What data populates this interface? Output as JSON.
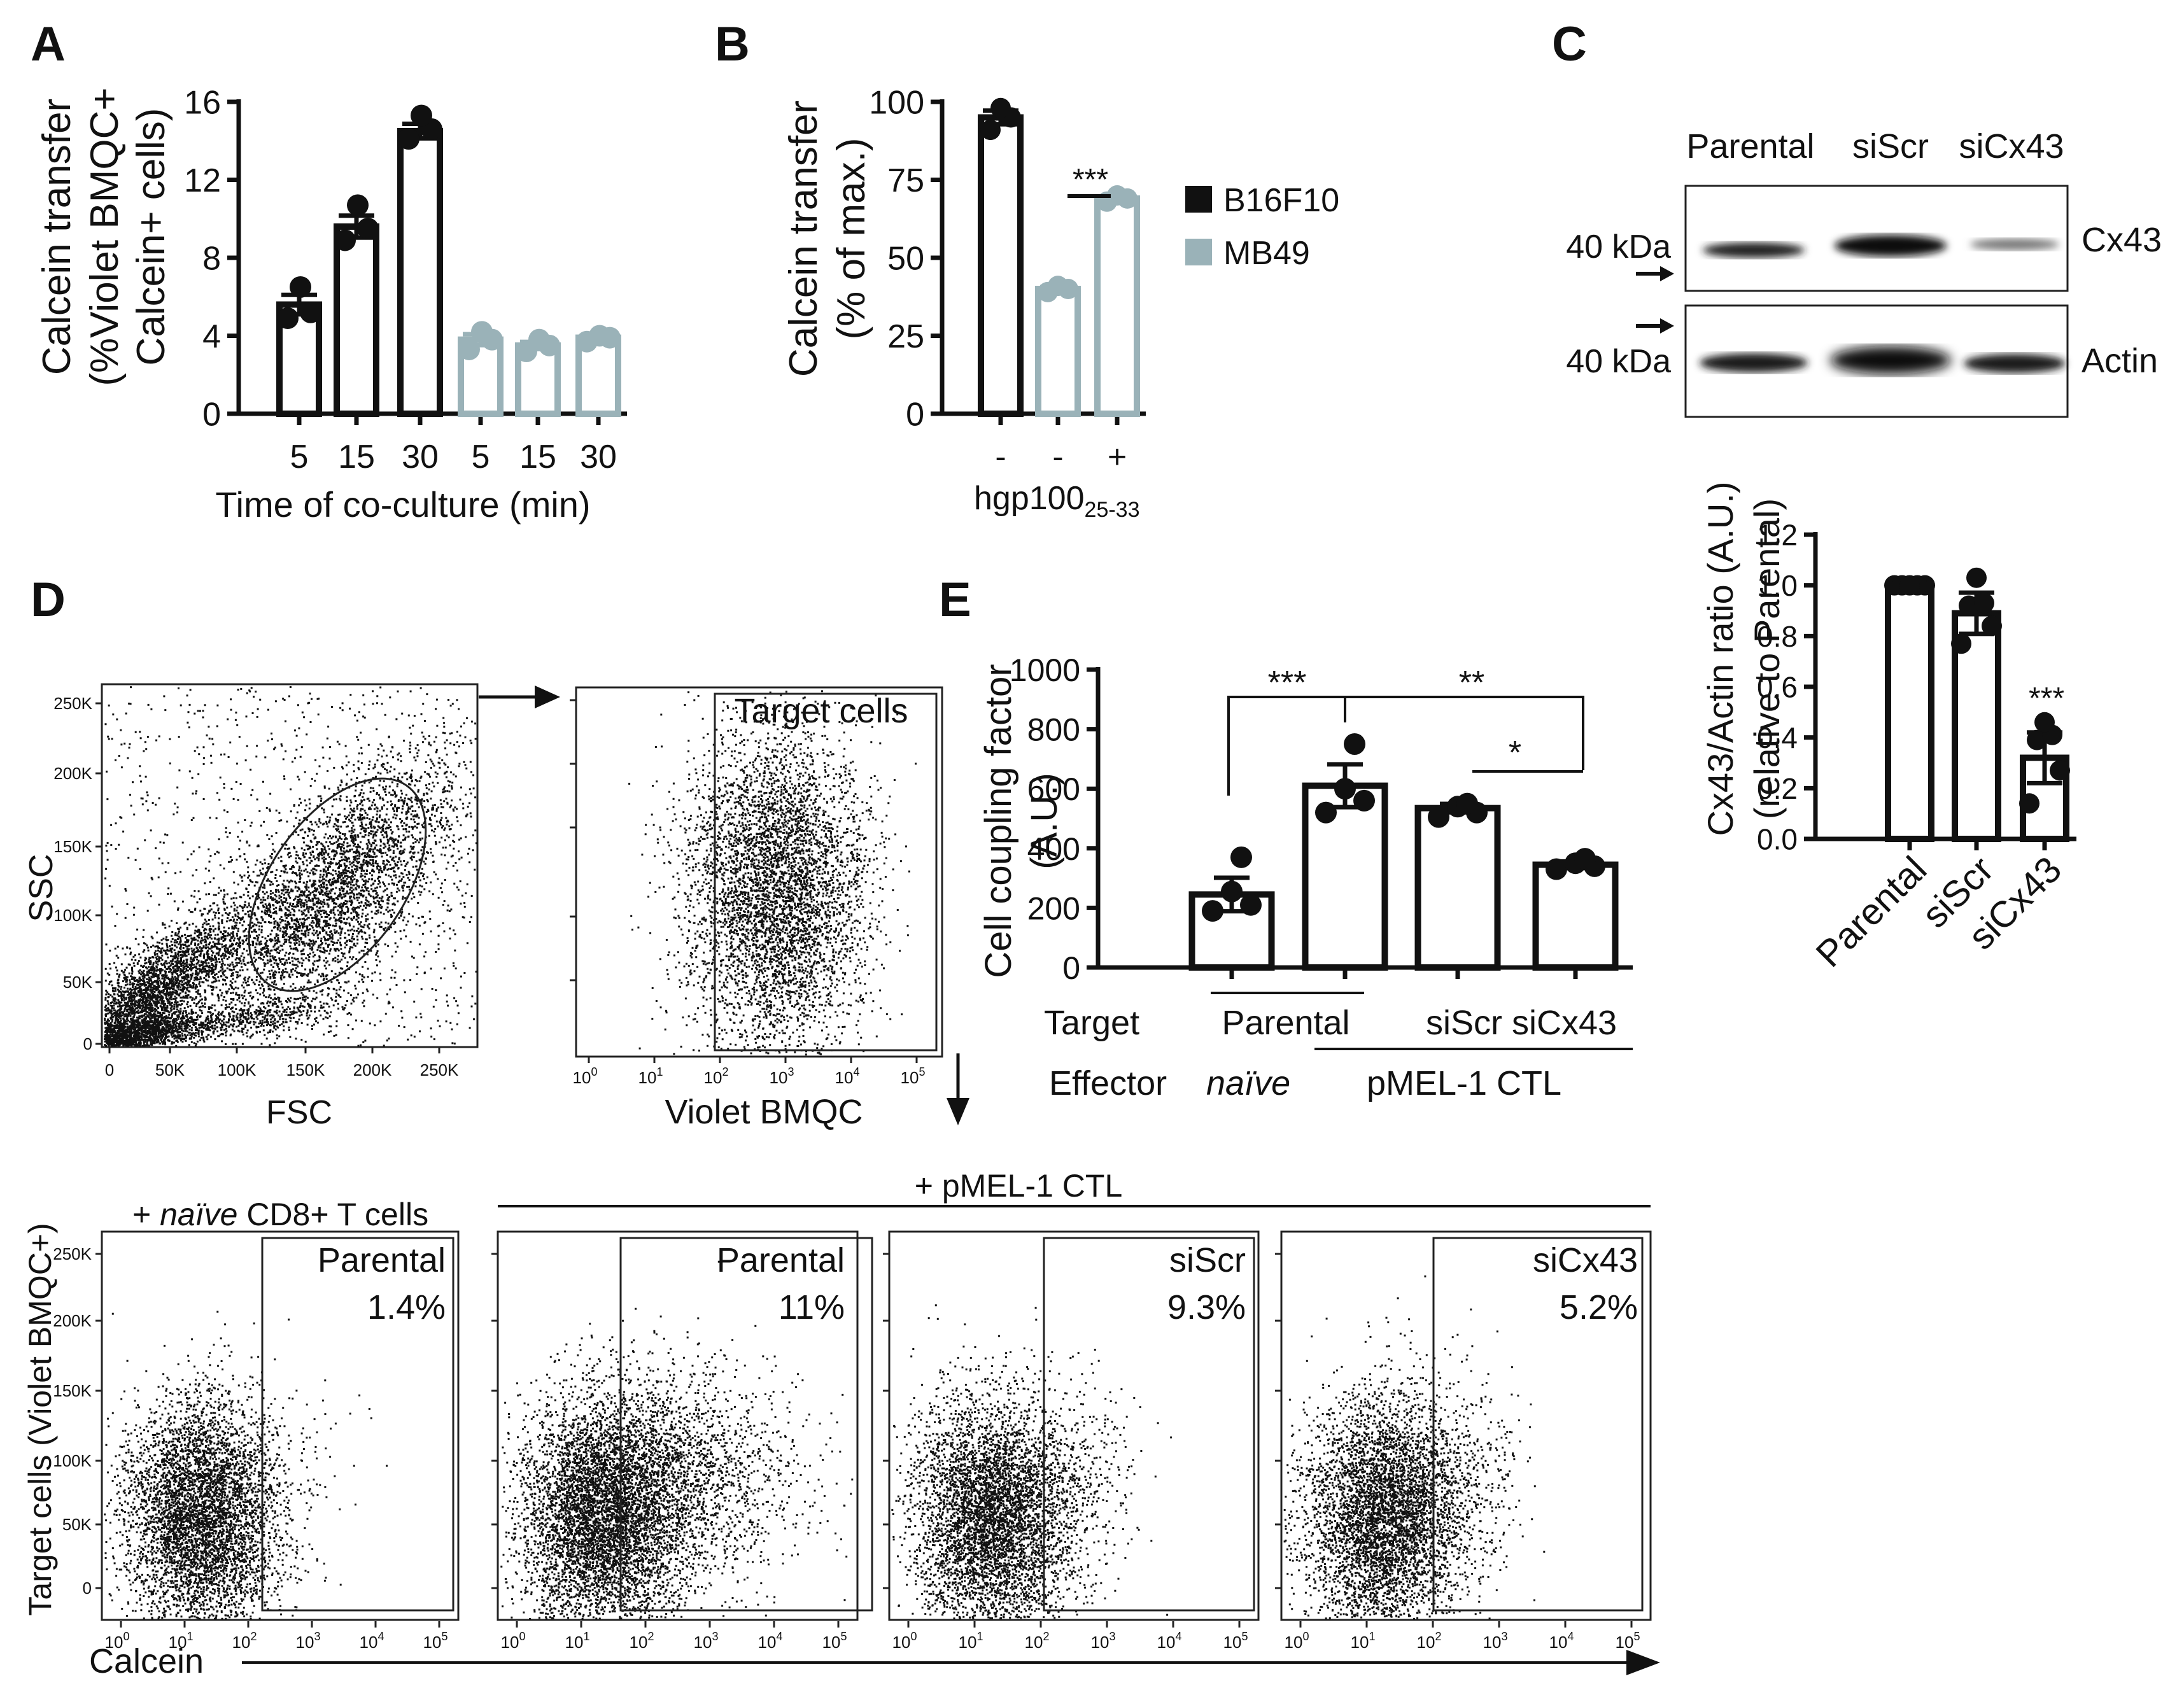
{
  "panels": {
    "A": {
      "letter": "A",
      "ylabel_lines": [
        "Calcein transfer",
        "(%Violet BMQC+",
        "Calcein+ cells)"
      ],
      "xlabel": "Time of co-culture (min)",
      "y_ticks": [
        "0",
        "4",
        "8",
        "12",
        "16"
      ],
      "x_ticks": [
        "5",
        "15",
        "30",
        "5",
        "15",
        "30"
      ]
    },
    "B": {
      "letter": "B",
      "ylabel_lines": [
        "Calcein transfer",
        "(% of max.)"
      ],
      "y_ticks": [
        "0",
        "25",
        "50",
        "75",
        "100"
      ],
      "x_ticks": [
        "-",
        "-",
        "+"
      ],
      "xlabel_main": "hgp100",
      "xlabel_sub": "25-33",
      "significance": "***",
      "legend": [
        {
          "label": "B16F10",
          "color": "#111111"
        },
        {
          "label": "MB49",
          "color": "#9ab2b8"
        }
      ]
    },
    "C": {
      "letter": "C",
      "blot_lanes": [
        "Parental",
        "siScr",
        "siCx43"
      ],
      "blot_rows": [
        {
          "kda": "40 kDa",
          "protein": "Cx43"
        },
        {
          "kda": "40 kDa",
          "protein": "Actin"
        }
      ],
      "ylabel_lines": [
        "Cx43/Actin ratio (A.U.)",
        "(relative to Parental)"
      ],
      "y_ticks": [
        "0.0",
        "0.2",
        "0.4",
        "0.6",
        "0.8",
        "1.0",
        "1.2"
      ],
      "x_ticks": [
        "Parental",
        "siScr",
        "siCx43"
      ],
      "significance": "***"
    },
    "D": {
      "letter": "D",
      "scatter1": {
        "xlabel": "FSC",
        "ylabel": "SSC",
        "x_ticks": [
          "0",
          "50K",
          "100K",
          "150K",
          "200K",
          "250K"
        ],
        "y_ticks": [
          "0",
          "50K",
          "100K",
          "150K",
          "200K",
          "250K"
        ]
      },
      "scatter2": {
        "xlabel": "Violet BMQC",
        "gate_label": "Target cells"
      },
      "row_ylabel": "Target cells (Violet BMQC+)",
      "row_xlabel": "Calcein",
      "naive_prefix": "+ ",
      "naive_italic": "naïve",
      "naive_suffix": " CD8+ T cells",
      "pmel_label": "+ pMEL-1 CTL",
      "log_ticks": [
        "10",
        "10",
        "10",
        "10",
        "10",
        "10"
      ],
      "log_exps": [
        "0",
        "1",
        "2",
        "3",
        "4",
        "5"
      ],
      "lin_y_ticks": [
        "0",
        "50K",
        "100K",
        "150K",
        "200K",
        "250K"
      ],
      "plots": [
        {
          "name": "Parental",
          "pct": "1.4%"
        },
        {
          "name": "Parental",
          "pct": "11%"
        },
        {
          "name": "siScr",
          "pct": "9.3%"
        },
        {
          "name": "siCx43",
          "pct": "5.2%"
        }
      ]
    },
    "E": {
      "letter": "E",
      "ylabel_lines": [
        "Cell coupling factor",
        "(A.U.)"
      ],
      "y_ticks": [
        "0",
        "200",
        "400",
        "600",
        "800",
        "1000"
      ],
      "sig": [
        "***",
        "**",
        "*"
      ],
      "target_label": "Target",
      "effector_label": "Effector",
      "target_parental": "Parental",
      "target_siscr_sicx43": "siScr siCx43",
      "effector_naive": "naïve",
      "effector_pmel": "pMEL-1 CTL"
    }
  },
  "chart_data": [
    {
      "type": "bar",
      "title": "A",
      "ylabel": "Calcein transfer (%Violet BMQC+ Calcein+ cells)",
      "xlabel": "Time of co-culture (min)",
      "ylim": [
        0,
        16
      ],
      "categories": [
        "5",
        "15",
        "30",
        "5",
        "15",
        "30"
      ],
      "series": [
        {
          "name": "B16F10",
          "color": "#111111",
          "values": [
            5.6,
            9.6,
            14.5,
            null,
            null,
            null
          ],
          "points": [
            [
              4.9,
              5.2,
              6.5
            ],
            [
              8.9,
              9.5,
              10.7
            ],
            [
              14.1,
              14.6,
              15.3
            ]
          ]
        },
        {
          "name": "MB49",
          "color": "#9ab2b8",
          "values": [
            null,
            null,
            null,
            3.8,
            3.5,
            3.9
          ],
          "points": [
            [
              3.3,
              3.8,
              4.2
            ],
            [
              3.2,
              3.5,
              3.8
            ],
            [
              3.7,
              3.9,
              4.0
            ]
          ]
        }
      ]
    },
    {
      "type": "bar",
      "title": "B",
      "ylabel": "Calcein transfer (% of max.)",
      "xlabel": "hgp100 25-33",
      "ylim": [
        0,
        100
      ],
      "categories": [
        "-",
        "-",
        "+"
      ],
      "series": [
        {
          "name": "B16F10",
          "color": "#111111",
          "values": [
            95,
            null,
            null
          ],
          "points": [
            [
              91,
              95,
              98
            ]
          ]
        },
        {
          "name": "MB49",
          "color": "#9ab2b8",
          "values": [
            null,
            40,
            69
          ],
          "points": [
            [
              39,
              40,
              41
            ],
            [
              68,
              69,
              70
            ]
          ]
        }
      ]
    },
    {
      "type": "bar",
      "title": "C",
      "ylabel": "Cx43/Actin ratio (A.U.) (relative to Parental)",
      "ylim": [
        0,
        1.2
      ],
      "categories": [
        "Parental",
        "siScr",
        "siCx43"
      ],
      "values": [
        1.0,
        0.89,
        0.32
      ],
      "points": [
        [
          1.0,
          1.0,
          1.0,
          1.0,
          1.0
        ],
        [
          0.77,
          0.84,
          0.92,
          0.93,
          1.03
        ],
        [
          0.14,
          0.27,
          0.39,
          0.41,
          0.46
        ]
      ]
    },
    {
      "type": "bar",
      "title": "E",
      "ylabel": "Cell coupling factor (A.U.)",
      "ylim": [
        0,
        1000
      ],
      "categories": [
        "Parental / naïve",
        "Parental / pMEL-1 CTL",
        "siScr / pMEL-1 CTL",
        "siCx43 / pMEL-1 CTL"
      ],
      "values": [
        245,
        610,
        535,
        345
      ],
      "points": [
        [
          190,
          210,
          255,
          370
        ],
        [
          520,
          560,
          600,
          750
        ],
        [
          505,
          520,
          540,
          550
        ],
        [
          330,
          340,
          350,
          365
        ]
      ]
    }
  ]
}
